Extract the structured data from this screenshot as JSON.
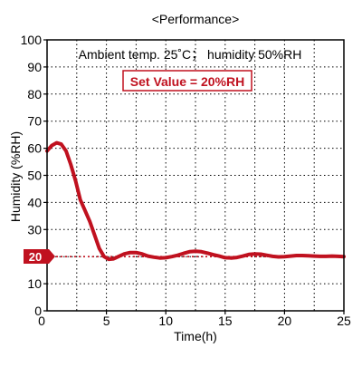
{
  "chart_data": {
    "type": "line",
    "title": "<Performance>",
    "xlabel": "Time(h)",
    "ylabel": "Humidity (%RH)",
    "xlim": [
      0,
      25
    ],
    "ylim": [
      0,
      100
    ],
    "x_ticks": [
      5,
      10,
      15,
      20,
      25
    ],
    "y_ticks": [
      0,
      10,
      20,
      30,
      40,
      50,
      60,
      70,
      80,
      90,
      100
    ],
    "grid": true,
    "annotation": "Ambient temp. 25˚C； humidity 50%RH",
    "set_value_label": "Set Value = 20%RH",
    "set_value": 20,
    "set_value_marker": "20",
    "colors": {
      "series": "#c0111f",
      "set_value": "#c0111f",
      "grid": "#000000",
      "axis": "#000000"
    },
    "series": [
      {
        "x": [
          0,
          0.4,
          0.8,
          1.2,
          1.6,
          2.0,
          2.4,
          2.8,
          3.2,
          3.6,
          4.0,
          4.4,
          4.8,
          5.2,
          5.6,
          6.0,
          6.5,
          7.0,
          7.5,
          8.0,
          8.5,
          9.0,
          9.5,
          10.0,
          10.5,
          11.0,
          11.5,
          12.0,
          12.5,
          13.0,
          13.5,
          14.0,
          14.5,
          15.0,
          15.5,
          16.0,
          16.5,
          17.0,
          17.5,
          18.0,
          18.5,
          19.0,
          19.5,
          20.0,
          20.5,
          21.0,
          21.5,
          22.0,
          22.5,
          23.0,
          23.5,
          24.0,
          24.5,
          25.0
        ],
        "values": [
          59,
          61,
          62,
          61.5,
          59,
          54,
          48,
          41,
          37,
          33,
          28,
          23,
          20,
          19,
          19.2,
          20,
          21,
          21.5,
          21.5,
          21,
          20.2,
          19.8,
          19.5,
          19.6,
          20,
          20.5,
          21.2,
          21.8,
          22,
          21.8,
          21.3,
          20.7,
          20.2,
          19.6,
          19.5,
          19.7,
          20.2,
          20.8,
          21,
          20.9,
          20.5,
          20.1,
          19.9,
          20,
          20.2,
          20.4,
          20.4,
          20.3,
          20.2,
          20.1,
          20.1,
          20.2,
          20.1,
          20
        ]
      }
    ]
  }
}
